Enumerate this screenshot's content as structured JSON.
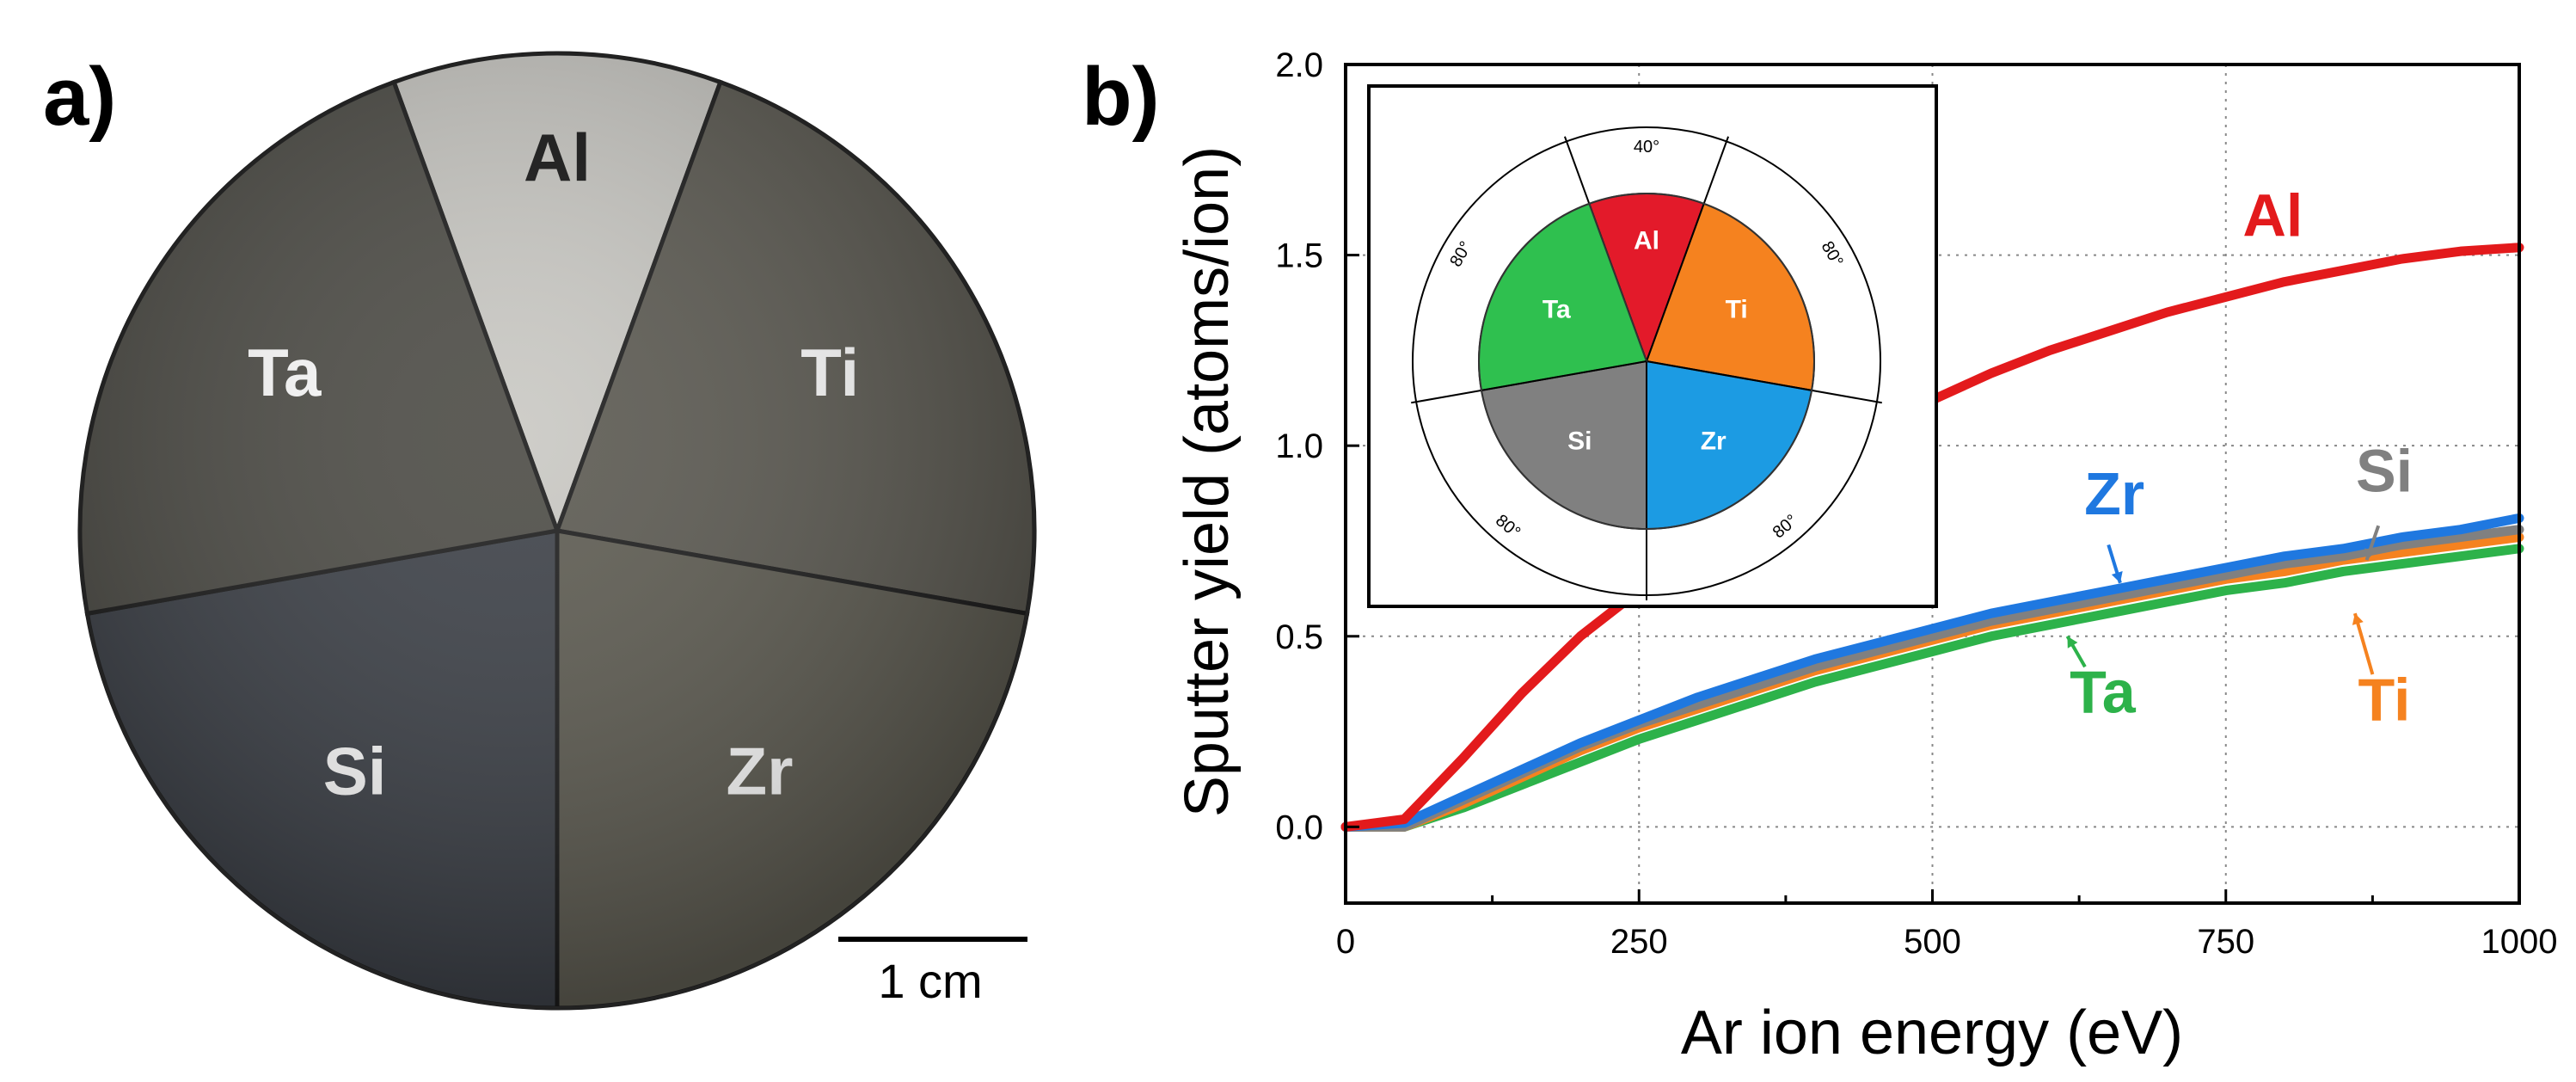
{
  "panel_a": {
    "label": "a)",
    "segments": [
      {
        "name": "Al",
        "color": "#c9c8c3"
      },
      {
        "name": "Ti",
        "color": "#5a5850"
      },
      {
        "name": "Zr",
        "color": "#5c5a50"
      },
      {
        "name": "Si",
        "color": "#3b3f46"
      },
      {
        "name": "Ta",
        "color": "#4b4a44"
      }
    ],
    "scale_bar": "1 cm"
  },
  "panel_b": {
    "label": "b)"
  },
  "chart_data": {
    "type": "line",
    "title": "",
    "xlabel": "Ar ion energy (eV)",
    "ylabel": "Sputter yield (atoms/ion)",
    "xlim": [
      0,
      1000
    ],
    "ylim": [
      -0.2,
      2.0
    ],
    "xticks": [
      0,
      250,
      500,
      750,
      1000
    ],
    "yticks": [
      0.0,
      0.5,
      1.0,
      1.5,
      2.0
    ],
    "xtick_labels": [
      "0",
      "250",
      "500",
      "750",
      "1000"
    ],
    "ytick_labels": [
      "0.0",
      "0.5",
      "1.0",
      "1.5",
      "2.0"
    ],
    "grid": true,
    "x": [
      0,
      50,
      100,
      150,
      200,
      250,
      300,
      350,
      400,
      450,
      500,
      550,
      600,
      650,
      700,
      750,
      800,
      850,
      900,
      950,
      1000
    ],
    "series": [
      {
        "name": "Al",
        "color": "#e31a1c",
        "values": [
          0.0,
          0.02,
          0.18,
          0.35,
          0.5,
          0.62,
          0.74,
          0.85,
          0.95,
          1.04,
          1.12,
          1.19,
          1.25,
          1.3,
          1.35,
          1.39,
          1.43,
          1.46,
          1.49,
          1.51,
          1.52
        ]
      },
      {
        "name": "Zr",
        "color": "#1f78e0",
        "values": [
          0.0,
          0.01,
          0.08,
          0.15,
          0.22,
          0.28,
          0.34,
          0.39,
          0.44,
          0.48,
          0.52,
          0.56,
          0.59,
          0.62,
          0.65,
          0.68,
          0.71,
          0.73,
          0.76,
          0.78,
          0.81
        ]
      },
      {
        "name": "Si",
        "color": "#808080",
        "values": [
          0.0,
          0.0,
          0.07,
          0.14,
          0.21,
          0.27,
          0.32,
          0.37,
          0.42,
          0.46,
          0.5,
          0.54,
          0.57,
          0.6,
          0.63,
          0.66,
          0.69,
          0.71,
          0.74,
          0.76,
          0.78
        ]
      },
      {
        "name": "Ti",
        "color": "#f5821f",
        "values": [
          0.0,
          0.0,
          0.06,
          0.13,
          0.2,
          0.26,
          0.31,
          0.36,
          0.41,
          0.45,
          0.49,
          0.53,
          0.56,
          0.59,
          0.62,
          0.65,
          0.67,
          0.7,
          0.72,
          0.74,
          0.76
        ]
      },
      {
        "name": "Ta",
        "color": "#2db24a",
        "values": [
          0.0,
          0.0,
          0.05,
          0.11,
          0.17,
          0.23,
          0.28,
          0.33,
          0.38,
          0.42,
          0.46,
          0.5,
          0.53,
          0.56,
          0.59,
          0.62,
          0.64,
          0.67,
          0.69,
          0.71,
          0.73
        ]
      }
    ],
    "inset": {
      "type": "pie",
      "slices": [
        {
          "name": "Al",
          "degrees": 40,
          "color": "#e31a2a"
        },
        {
          "name": "Ti",
          "degrees": 80,
          "color": "#f5821f"
        },
        {
          "name": "Zr",
          "degrees": 80,
          "color": "#1c9be3"
        },
        {
          "name": "Si",
          "degrees": 80,
          "color": "#808080"
        },
        {
          "name": "Ta",
          "degrees": 80,
          "color": "#2fc04f"
        }
      ],
      "angle_labels": [
        "40°",
        "80°",
        "80°",
        "80°",
        "80°"
      ]
    }
  }
}
